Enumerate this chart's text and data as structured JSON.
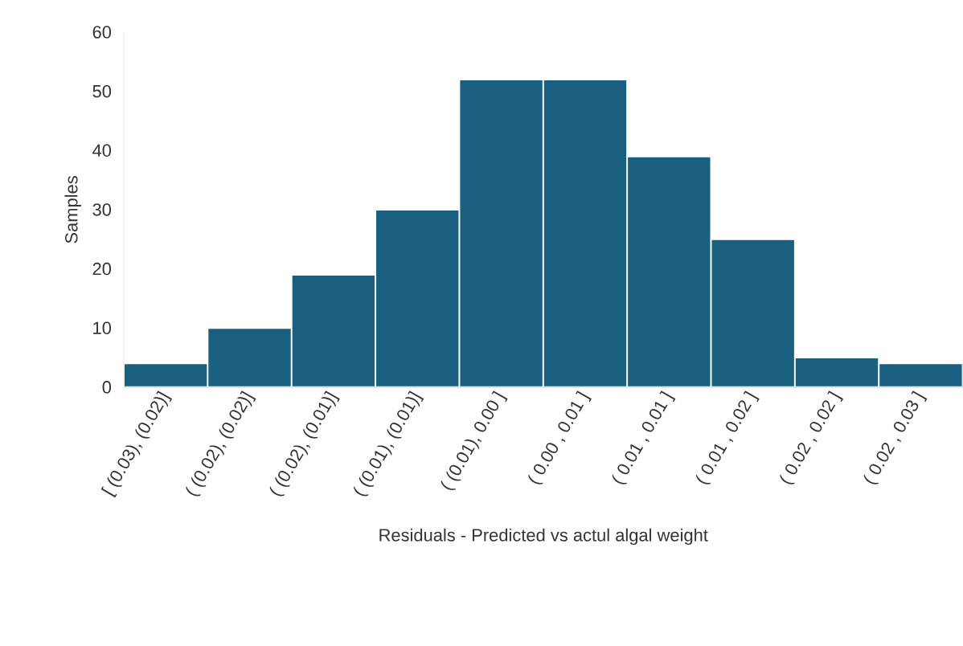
{
  "chart_data": {
    "type": "bar",
    "xlabel": "Residuals - Predicted vs actul algal weight",
    "ylabel": "Samples",
    "categories": [
      "[ (0.03), (0.02)]",
      "( (0.02), (0.02)]",
      "( (0.02), (0.01)]",
      "( (0.01), (0.01)]",
      "( (0.01), 0.00 ]",
      "( 0.00 , 0.01 ]",
      "( 0.01 , 0.01 ]",
      "( 0.01 , 0.02 ]",
      "( 0.02 , 0.02 ]",
      "( 0.02 , 0.03 ]"
    ],
    "values": [
      4,
      10,
      19,
      30,
      52,
      52,
      39,
      25,
      5,
      4
    ],
    "color": "#185f80",
    "ylim": [
      0,
      60
    ],
    "yticks": [
      0,
      10,
      20,
      30,
      40,
      50,
      60
    ],
    "grid": false
  }
}
